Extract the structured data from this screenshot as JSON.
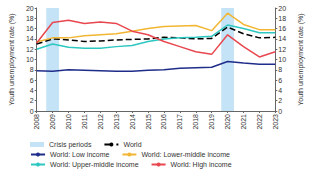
{
  "chart_data": {
    "type": "line",
    "y_label": "Youth unemployment rate (%)",
    "y2_label": "Youth unemployment rate (%)",
    "x": [
      2008,
      2009,
      2010,
      2011,
      2012,
      2013,
      2014,
      2015,
      2016,
      2017,
      2018,
      2019,
      2020,
      2021,
      2022,
      2023
    ],
    "xlim": [
      2008,
      2023
    ],
    "xticks": [
      2008,
      2009,
      2010,
      2011,
      2012,
      2013,
      2014,
      2015,
      2016,
      2017,
      2018,
      2019,
      2020,
      2021,
      2022,
      2023
    ],
    "ylim": [
      0,
      20
    ],
    "yticks": [
      0,
      2,
      4,
      6,
      8,
      10,
      12,
      14,
      16,
      18,
      20
    ],
    "y2lim": [
      0,
      20
    ],
    "y2ticks": [
      0,
      2,
      4,
      6,
      8,
      10,
      12,
      14,
      16,
      18,
      20
    ],
    "grid": false,
    "legend": "bottom",
    "crisis": {
      "name": "Crisis periods",
      "color": "#c5e3f6",
      "periods": [
        [
          2008.6,
          2009.4
        ],
        [
          2019.6,
          2020.4
        ]
      ]
    },
    "series": [
      {
        "name": "World",
        "color": "#000000",
        "line_style": "dashed",
        "values": [
          13.0,
          14.0,
          13.8,
          13.5,
          13.6,
          13.8,
          13.9,
          14.0,
          14.3,
          14.2,
          14.0,
          14.1,
          16.3,
          15.0,
          14.2,
          14.3
        ]
      },
      {
        "name": "World: Low income",
        "color": "#1f2d8a",
        "line_style": "solid",
        "values": [
          7.8,
          7.7,
          8.0,
          7.9,
          7.8,
          7.7,
          7.7,
          7.9,
          8.0,
          8.3,
          8.4,
          8.5,
          9.6,
          9.3,
          9.1,
          9.1
        ]
      },
      {
        "name": "World: Lower-middle income",
        "color": "#f2b632",
        "line_style": "solid",
        "values": [
          13.4,
          14.2,
          14.2,
          14.6,
          14.8,
          15.0,
          15.5,
          16.0,
          16.4,
          16.5,
          16.6,
          15.6,
          19.0,
          16.8,
          15.8,
          15.8
        ]
      },
      {
        "name": "World: Upper-middle income",
        "color": "#2cc7c0",
        "line_style": "solid",
        "values": [
          12.0,
          13.0,
          12.4,
          12.2,
          12.2,
          12.5,
          12.7,
          13.5,
          14.0,
          14.2,
          14.3,
          14.5,
          16.7,
          16.0,
          15.2,
          15.2
        ]
      },
      {
        "name": "World: High income",
        "color": "#e8474f",
        "line_style": "solid",
        "values": [
          13.2,
          17.2,
          17.6,
          17.0,
          17.3,
          17.0,
          15.5,
          14.8,
          13.5,
          12.5,
          11.5,
          11.0,
          14.8,
          12.5,
          10.5,
          11.5
        ]
      }
    ]
  }
}
